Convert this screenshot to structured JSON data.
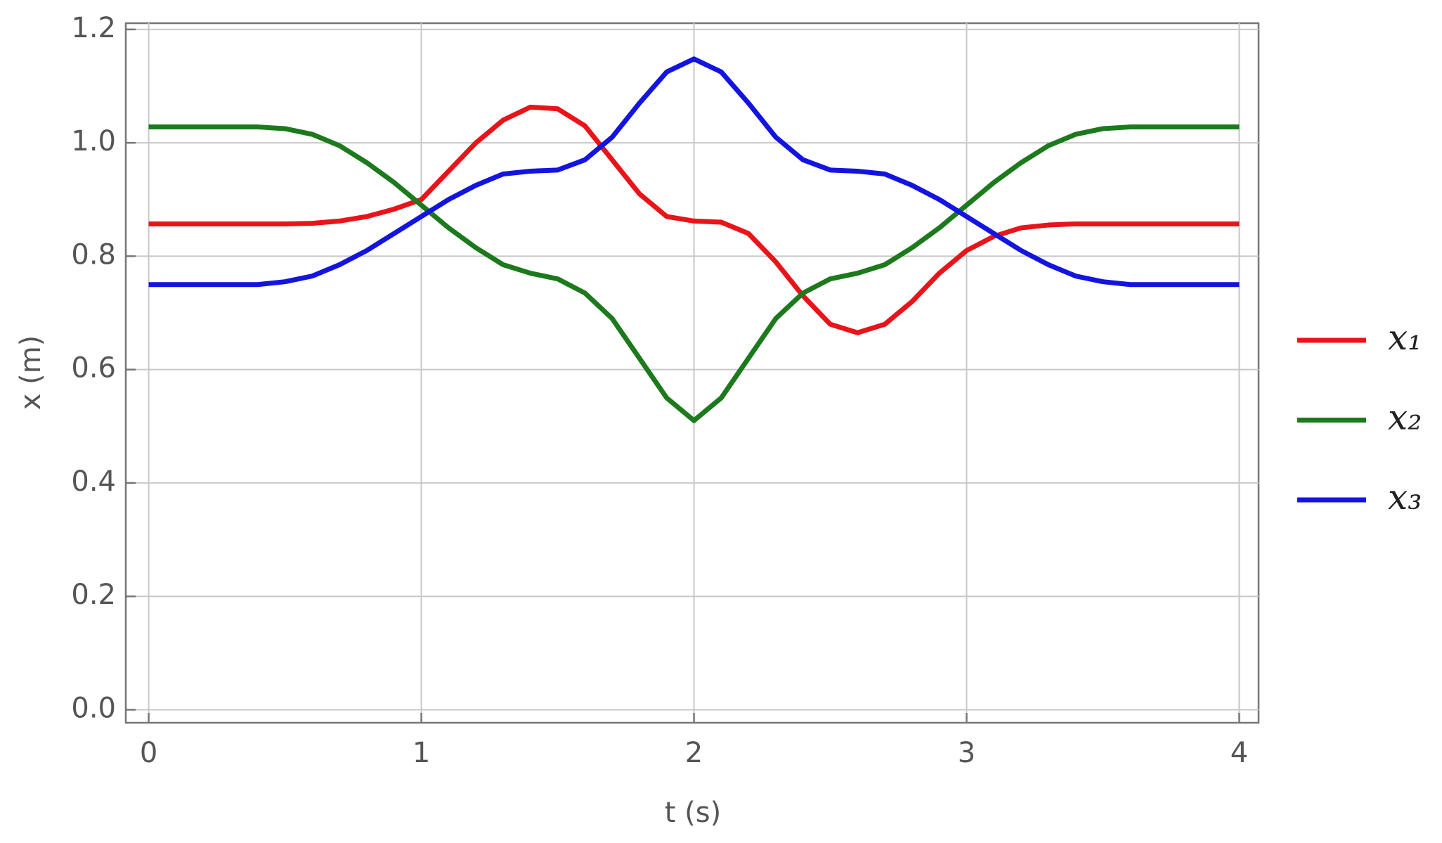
{
  "chart_data": {
    "type": "line",
    "x_label": "t (s)",
    "y_label": "x (m)",
    "x": [
      0,
      0.1,
      0.2,
      0.3,
      0.4,
      0.5,
      0.6,
      0.7,
      0.8,
      0.9,
      1.0,
      1.1,
      1.2,
      1.3,
      1.4,
      1.5,
      1.6,
      1.7,
      1.8,
      1.9,
      2.0,
      2.1,
      2.2,
      2.3,
      2.4,
      2.5,
      2.6,
      2.7,
      2.8,
      2.9,
      3.0,
      3.1,
      3.2,
      3.3,
      3.4,
      3.5,
      3.6,
      3.7,
      3.8,
      3.9,
      4.0
    ],
    "series": [
      {
        "name": "x₁",
        "color": "#e8141a",
        "values": [
          0.857,
          0.857,
          0.857,
          0.857,
          0.857,
          0.857,
          0.858,
          0.862,
          0.87,
          0.883,
          0.9,
          0.95,
          1.0,
          1.04,
          1.063,
          1.06,
          1.03,
          0.97,
          0.91,
          0.87,
          0.862,
          0.86,
          0.84,
          0.79,
          0.73,
          0.68,
          0.665,
          0.68,
          0.72,
          0.77,
          0.81,
          0.835,
          0.85,
          0.855,
          0.857,
          0.857,
          0.857,
          0.857,
          0.857,
          0.857,
          0.857
        ]
      },
      {
        "name": "x₂",
        "color": "#1c7a1c",
        "values": [
          1.028,
          1.028,
          1.028,
          1.028,
          1.028,
          1.025,
          1.015,
          0.995,
          0.965,
          0.93,
          0.89,
          0.85,
          0.815,
          0.785,
          0.77,
          0.76,
          0.735,
          0.69,
          0.62,
          0.55,
          0.51,
          0.55,
          0.62,
          0.69,
          0.735,
          0.76,
          0.77,
          0.785,
          0.815,
          0.85,
          0.89,
          0.93,
          0.965,
          0.995,
          1.015,
          1.025,
          1.028,
          1.028,
          1.028,
          1.028,
          1.028
        ]
      },
      {
        "name": "x₃",
        "color": "#1414e0",
        "values": [
          0.75,
          0.75,
          0.75,
          0.75,
          0.75,
          0.755,
          0.765,
          0.785,
          0.81,
          0.84,
          0.87,
          0.9,
          0.925,
          0.945,
          0.95,
          0.952,
          0.97,
          1.01,
          1.07,
          1.125,
          1.148,
          1.125,
          1.07,
          1.01,
          0.97,
          0.952,
          0.95,
          0.945,
          0.925,
          0.9,
          0.87,
          0.84,
          0.81,
          0.785,
          0.765,
          0.755,
          0.75,
          0.75,
          0.75,
          0.75,
          0.75
        ]
      }
    ],
    "xlim": [
      -0.084,
      4.071
    ],
    "ylim": [
      -0.023,
      1.211
    ],
    "xticks": [
      0,
      1,
      2,
      3,
      4
    ],
    "yticks": [
      {
        "value": 0,
        "label": "0.0"
      },
      0.2,
      0.4,
      0.6,
      0.8,
      {
        "value": 1,
        "label": "1.0"
      },
      1.2
    ],
    "grid": true,
    "legend": "right"
  }
}
